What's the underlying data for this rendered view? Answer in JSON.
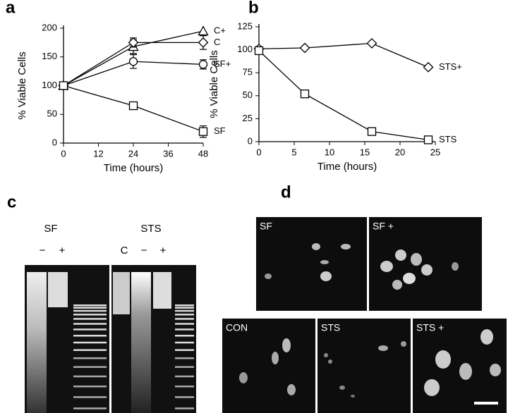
{
  "chart_data": [
    {
      "type": "line",
      "label": "a",
      "x_label": "Time (hours)",
      "y_label": "% Viable Cells",
      "x": [
        0,
        24,
        48
      ],
      "xlim": [
        0,
        48
      ],
      "xticks": [
        0,
        12,
        24,
        36,
        48
      ],
      "ylim": [
        0,
        200
      ],
      "yticks": [
        0,
        50,
        100,
        150,
        200
      ],
      "series": [
        {
          "name": "C+",
          "color": "#000000",
          "marker": "triangle",
          "values": [
            100,
            168,
            195
          ],
          "errors": [
            null,
            12,
            null
          ]
        },
        {
          "name": "C",
          "color": "#000000",
          "marker": "diamond",
          "values": [
            100,
            175,
            175
          ],
          "errors": [
            null,
            8,
            12
          ]
        },
        {
          "name": "SF+",
          "color": "#000000",
          "marker": "circle",
          "values": [
            100,
            142,
            137
          ],
          "errors": [
            null,
            12,
            8
          ]
        },
        {
          "name": "SF",
          "color": "#000000",
          "marker": "square",
          "values": [
            100,
            65,
            20
          ],
          "errors": [
            null,
            3,
            10
          ]
        }
      ]
    },
    {
      "type": "line",
      "label": "b",
      "x_label": "Time (hours)",
      "y_label": "% Viable Cells",
      "x": [
        0,
        6.5,
        16,
        24
      ],
      "xlim": [
        0,
        25
      ],
      "xticks": [
        0,
        5,
        10,
        15,
        20,
        25
      ],
      "ylim": [
        0,
        125
      ],
      "yticks": [
        0,
        25,
        50,
        75,
        100,
        125
      ],
      "series": [
        {
          "name": "STS+",
          "color": "#000000",
          "marker": "diamond",
          "values": [
            101,
            102,
            107,
            81
          ]
        },
        {
          "name": "STS",
          "color": "#000000",
          "marker": "square",
          "values": [
            99,
            52,
            11,
            2
          ]
        }
      ]
    }
  ],
  "gels": {
    "label": "c",
    "groups": [
      {
        "name": "SF",
        "lanes": [
          "−",
          "+"
        ]
      },
      {
        "name": "STS",
        "lanes": [
          "C",
          "−",
          "+"
        ]
      }
    ]
  },
  "micrographs": {
    "label": "d",
    "images": [
      "SF",
      "SF +",
      "CON",
      "STS",
      "STS +"
    ]
  }
}
